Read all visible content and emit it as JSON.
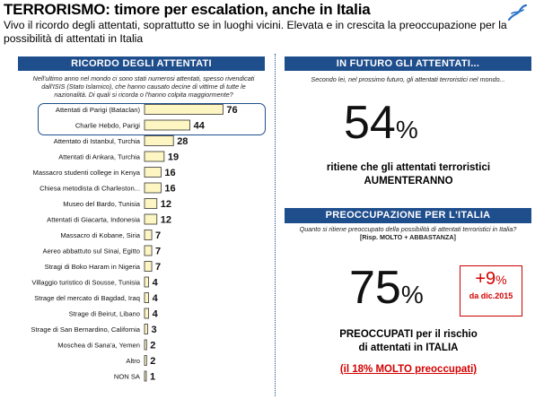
{
  "header": {
    "title": "TERRORISMO: timore per escalation, anche in Italia",
    "subtitle": "Vivo il ricordo degli attentati, soprattutto se in luoghi vicini. Elevata e in crescita la preoccupazione per la possibilità di attentati in Italia"
  },
  "left_panel": {
    "title": "RICORDO DEGLI ATTENTATI",
    "question": "Nell'ultimo anno nel mondo ci sono stati numerosi attentati, spesso rivendicati dall'ISIS (Stato Islamico), che hanno causato decine di vittime di tutte le nazionalità. Di quali si ricorda o l'hanno colpita maggiormente?"
  },
  "chart_data": {
    "type": "bar",
    "orientation": "horizontal",
    "categories": [
      "Attentati di Parigi (Bataclan)",
      "Charlie Hebdo, Parigi",
      "Attentato di Istanbul, Turchia",
      "Attentati di Ankara, Turchia",
      "Massacro studenti college in Kenya",
      "Chiesa metodista di Charleston...",
      "Museo del Bardo, Tunisia",
      "Attentati di Giacarta, Indonesia",
      "Massacro di Kobane, Siria",
      "Aereo abbattuto sul Sinai, Egitto",
      "Stragi di Boko Haram in Nigeria",
      "Villaggio turistico di Sousse, Tunisia",
      "Strage del mercato di Bagdad, Iraq",
      "Strage di Beirut, Libano",
      "Strage di San Bernardino, California",
      "Moschea di Sana'a, Yemen",
      "Altro",
      "NON SA"
    ],
    "values": [
      76,
      44,
      28,
      19,
      16,
      16,
      12,
      12,
      7,
      7,
      7,
      4,
      4,
      4,
      3,
      2,
      2,
      1
    ],
    "highlighted": [
      "Attentati di Parigi (Bataclan)",
      "Charlie Hebdo, Parigi"
    ],
    "bar_color": "#fdf5c2",
    "bar_border": "#333333",
    "highlight_color": "#1f4e8c"
  },
  "right_top": {
    "title": "IN FUTURO GLI ATTENTATI...",
    "question": "Secondo lei, nel prossimo futuro, gli attentati terroristici nel mondo...",
    "value": "54",
    "unit": "%",
    "caption_line1": "ritiene che gli attentati terroristici",
    "caption_line2": "AUMENTERANNO"
  },
  "right_bottom": {
    "title": "PREOCCUPAZIONE PER L'ITALIA",
    "question_line1": "Quanto si ritiene preoccupato della possibilità di attentati terroristici in Italia?",
    "question_line2": "[Risp. MOLTO + ABBASTANZA]",
    "value": "75",
    "unit": "%",
    "delta": "+9",
    "delta_unit": "%",
    "delta_since": "da dic.2015",
    "caption_line1": "PREOCCUPATI per il rischio",
    "caption_line2": "di attentati in ITALIA",
    "footnote": "(il 18% MOLTO preoccupati)"
  },
  "colors": {
    "header_bg": "#1f4e8c",
    "accent_red": "#d40000",
    "logo": "#2a73c8"
  },
  "icons": {
    "logo": "brand-logo-icon"
  }
}
